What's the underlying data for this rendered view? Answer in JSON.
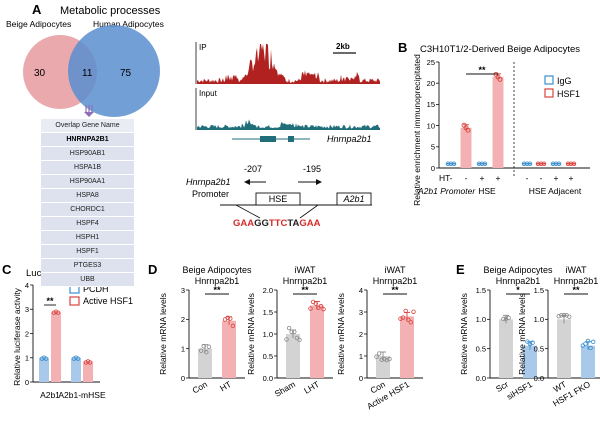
{
  "colors": {
    "beige": "#e8a0a4",
    "human": "#5a8ed0",
    "overlap": "#8d6fb8",
    "ip_track": "#b0211f",
    "input_track": "#1f6e7a",
    "igg": "#3a8fcf",
    "hsf1": "#d9433e",
    "gray_bar": "#d3d3d3",
    "pink_bar": "#f3b1b3",
    "blue_bar": "#a9c9ea",
    "table_bg": "#dde2ee",
    "seq_red": "#d62a2a"
  },
  "panelA": {
    "letter": "A",
    "title": "Metabolic processes",
    "venn": {
      "left_label": "Beige Adipocytes",
      "right_label": "Human Adipocytes",
      "left_only": "30",
      "overlap": "11",
      "right_only": "75"
    },
    "table": {
      "header": "Overlap Gene Name",
      "genes": [
        "HNRNPA2B1",
        "HSP90AB1",
        "HSPA1B",
        "HSP90AA1",
        "HSPA8",
        "CHORDC1",
        "HSPF4",
        "HSPH1",
        "HSPF1",
        "PTGES3",
        "UBB"
      ]
    },
    "tracks": {
      "ip_label": "IP",
      "input_label": "Input",
      "scale_label": "2kb",
      "gene_label": "Hnrnpa2b1"
    },
    "promoter": {
      "gene_label": "Hnrnpa2b1",
      "promoter_label": "Promoter",
      "pos1": "-207",
      "pos2": "-195",
      "hse_label": "HSE",
      "a2b1_label": "A2b1",
      "seq": [
        "GAA",
        "GG",
        "TTC",
        "TA",
        "GAA"
      ]
    }
  },
  "panelB": {
    "letter": "B",
    "title": "C3H10T1/2-Derived Beige Adipocytes",
    "ylabel": "Relative enrichment immunoprecipitated",
    "legend": [
      "IgG",
      "HSF1"
    ],
    "ht_label": "HT",
    "ht_signs": [
      "-",
      "-",
      "+",
      "+",
      "-",
      "-",
      "+",
      "+"
    ],
    "promoter_label": "A2b1 Promoter",
    "groups": [
      "HSE",
      "HSE Adjacent"
    ],
    "sig": "**",
    "chart_data": {
      "type": "bar",
      "categories": [
        "IgG HT-",
        "HSF1 HT-",
        "IgG HT+",
        "HSF1 HT+",
        "IgG HT- adj",
        "HSF1 HT- adj",
        "IgG HT+ adj",
        "HSF1 HT+ adj"
      ],
      "values": [
        1,
        9.5,
        1,
        21.5,
        1,
        1,
        1,
        1
      ],
      "yticks": [
        0,
        5,
        10,
        15,
        20,
        25
      ],
      "ylim": [
        0,
        25
      ]
    }
  },
  "panelC": {
    "letter": "C",
    "title": "Luciferase assay",
    "ylabel": "Relative luciferase activity",
    "legend": [
      "PCDH",
      "Active HSF1"
    ],
    "categories": [
      "A2b1",
      "A2b1-mHSE"
    ],
    "sig": "**",
    "chart_data": {
      "type": "bar",
      "series": [
        {
          "name": "PCDH",
          "values": [
            1,
            1
          ]
        },
        {
          "name": "Active HSF1",
          "values": [
            2.9,
            0.85
          ]
        }
      ],
      "yticks": [
        0,
        1,
        2,
        3,
        4
      ],
      "ylim": [
        0,
        4
      ]
    }
  },
  "panelD": {
    "letter": "D",
    "ylabel": "Relative mRNA levels",
    "charts": [
      {
        "title1": "Beige Adipocytes",
        "title2": "Hnrnpa2b1",
        "cats": [
          "Con",
          "HT"
        ],
        "values": [
          1,
          1.95
        ],
        "yticks": [
          0,
          1,
          2,
          3
        ],
        "ylim": [
          0,
          3
        ],
        "sig": "**"
      },
      {
        "title1": "iWAT",
        "title2": "Hnrnpa2b1",
        "cats": [
          "Sham",
          "LHT"
        ],
        "values": [
          1,
          1.65
        ],
        "yticks": [
          0.0,
          0.5,
          1.0,
          1.5,
          2.0
        ],
        "ylim": [
          0,
          2
        ],
        "sig": "**"
      },
      {
        "title1": "iWAT",
        "title2": "Hnrnpa2b1",
        "cats": [
          "Con",
          "Active HSF1"
        ],
        "values": [
          1,
          2.8
        ],
        "yticks": [
          0,
          1,
          2,
          3,
          4
        ],
        "ylim": [
          0,
          4
        ],
        "sig": "**"
      }
    ]
  },
  "panelE": {
    "letter": "E",
    "ylabel": "Relative mRNA levels",
    "charts": [
      {
        "title1": "Beige Adipocytes",
        "title2": "Hnrnpa2b1",
        "cats": [
          "Scr",
          "siHSF1"
        ],
        "values": [
          1,
          0.55
        ],
        "yticks": [
          0.0,
          0.5,
          1.0,
          1.5
        ],
        "ylim": [
          0,
          1.5
        ],
        "sig": "*"
      },
      {
        "title1": "iWAT",
        "title2": "Hnrnpa2b1",
        "cats": [
          "WT",
          "HSF1 FKO"
        ],
        "values": [
          1,
          0.55
        ],
        "yticks": [
          0.0,
          0.5,
          1.0,
          1.5
        ],
        "ylim": [
          0,
          1.5
        ],
        "sig": "**"
      }
    ]
  }
}
